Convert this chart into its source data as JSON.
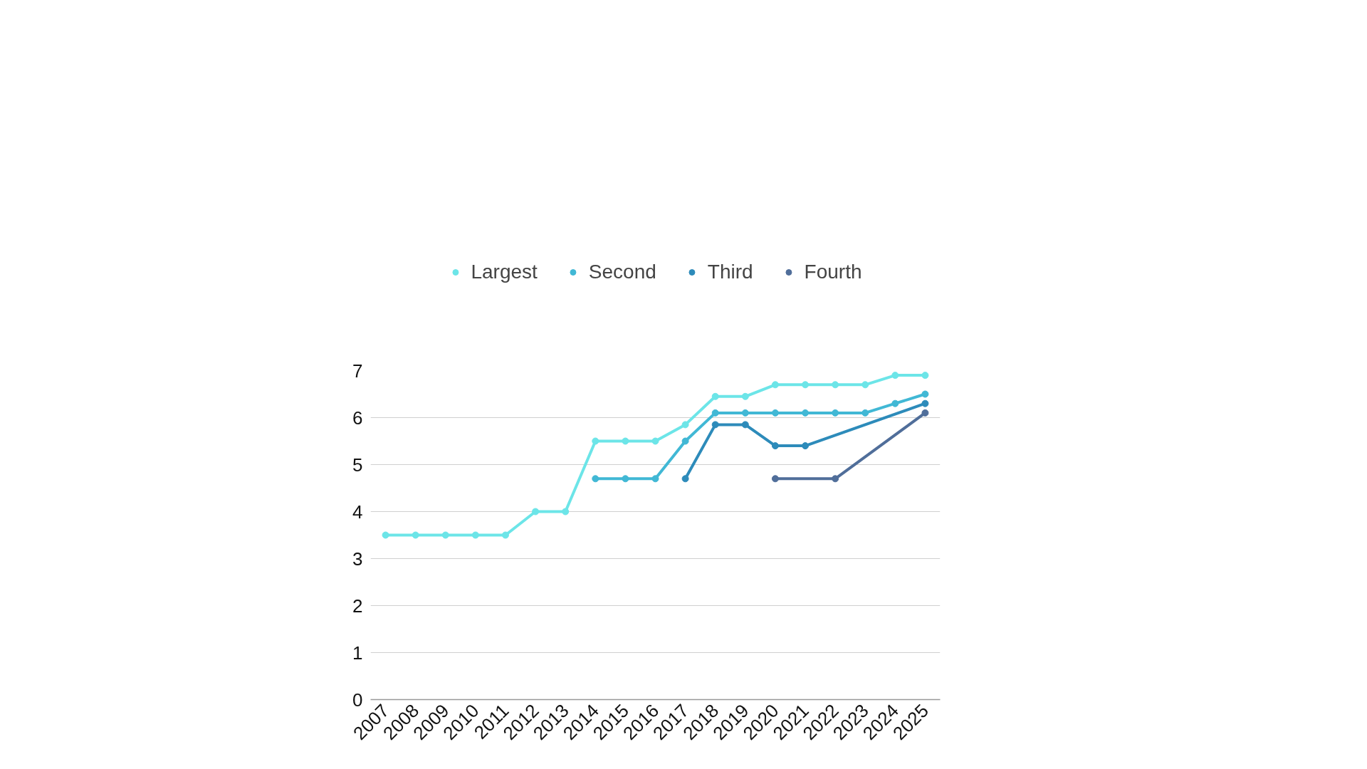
{
  "chart_data": {
    "type": "line",
    "marker": "circle",
    "legend": "top",
    "grid": "y",
    "x": [
      2007,
      2008,
      2009,
      2010,
      2011,
      2012,
      2013,
      2014,
      2015,
      2016,
      2017,
      2018,
      2019,
      2020,
      2021,
      2022,
      2023,
      2024,
      2025
    ],
    "xlim": [
      2006.5,
      2025.5
    ],
    "xticks": [
      2007,
      2008,
      2009,
      2010,
      2011,
      2012,
      2013,
      2014,
      2015,
      2016,
      2017,
      2018,
      2019,
      2020,
      2021,
      2022,
      2023,
      2024,
      2025
    ],
    "ylim": [
      0,
      7
    ],
    "yticks": [
      0,
      1,
      2,
      3,
      4,
      5,
      6,
      7
    ],
    "series": [
      {
        "name": "Largest",
        "color": "#6ce5e8",
        "values": [
          3.5,
          3.5,
          3.5,
          3.5,
          3.5,
          4,
          4,
          5.5,
          5.5,
          5.5,
          5.85,
          6.45,
          6.45,
          6.7,
          6.7,
          6.7,
          6.7,
          6.9,
          6.9
        ]
      },
      {
        "name": "Second",
        "color": "#41b8d5",
        "x": [
          2014,
          2015,
          2016,
          2017,
          2018,
          2019,
          2020,
          2021,
          2022,
          2023,
          2024,
          2025
        ],
        "values": [
          4.7,
          4.7,
          4.7,
          5.5,
          6.1,
          6.1,
          6.1,
          6.1,
          6.1,
          6.1,
          6.3,
          6.5
        ]
      },
      {
        "name": "Third",
        "color": "#2d8bba",
        "x": [
          2017,
          2018,
          2019,
          2020,
          2021,
          2025
        ],
        "values": [
          4.7,
          5.85,
          5.85,
          5.4,
          5.4,
          6.3
        ]
      },
      {
        "name": "Fourth",
        "color": "#506e9a",
        "x": [
          2020,
          2022,
          2025
        ],
        "values": [
          4.7,
          4.7,
          6.1
        ]
      }
    ]
  }
}
